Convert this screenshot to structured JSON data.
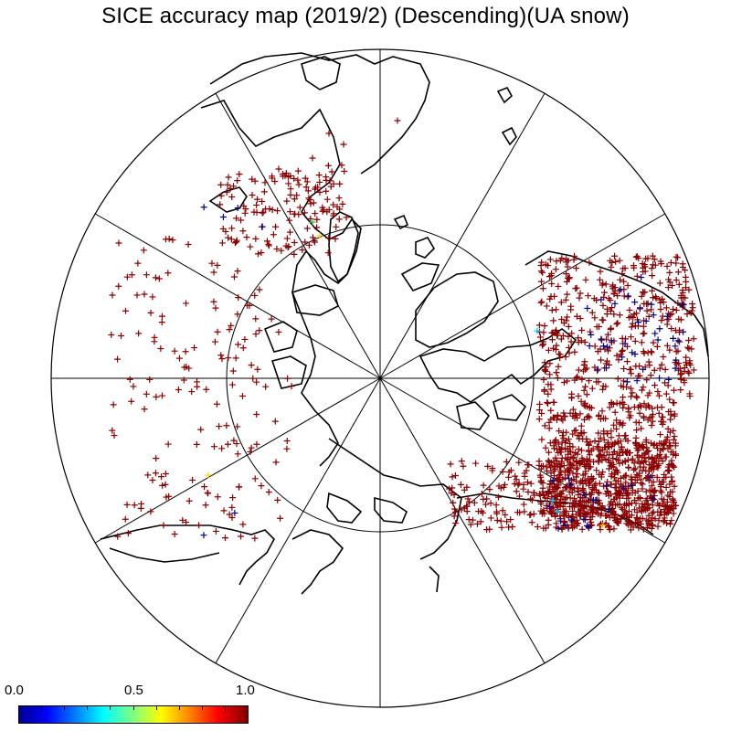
{
  "title": "SICE accuracy map (2019/2) (Descending)(UA snow)",
  "colorbar": {
    "min_label": "0.0",
    "mid_label": "0.5",
    "max_label": "1.0",
    "colors": [
      "#00008f",
      "#0000ff",
      "#0080ff",
      "#00ffff",
      "#80ff80",
      "#ffff00",
      "#ff8000",
      "#ff0000",
      "#800000"
    ]
  },
  "map": {
    "projection": "north-polar-stereographic",
    "meridian_spacing_deg": 30,
    "inner_latitude_circle": true,
    "marker": "+",
    "dominant_value": 1.0,
    "regions": [
      {
        "name": "north-america-west",
        "value": 1.0,
        "color": "#8b0000",
        "density": "sparse"
      },
      {
        "name": "alaska-chukotka",
        "value": 1.0,
        "color": "#8b0000",
        "density": "medium"
      },
      {
        "name": "europe",
        "value": 1.0,
        "color": "#8b0000",
        "density": "dense"
      },
      {
        "name": "central-asia",
        "value": 1.0,
        "color": "#8b0000",
        "density": "dense"
      },
      {
        "name": "scattered-low",
        "value": 0.1,
        "color": "#00008b",
        "density": "sparse"
      }
    ]
  }
}
